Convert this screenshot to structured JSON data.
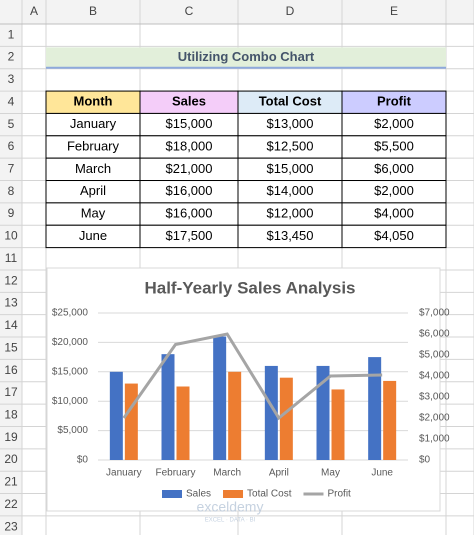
{
  "sheet": {
    "columns": [
      "A",
      "B",
      "C",
      "D",
      "E"
    ],
    "rows": [
      "1",
      "2",
      "3",
      "4",
      "5",
      "6",
      "7",
      "8",
      "9",
      "10",
      "11",
      "12",
      "13",
      "14",
      "15",
      "16",
      "17",
      "18",
      "19",
      "20",
      "21",
      "22",
      "23"
    ],
    "title": "Utilizing Combo Chart",
    "table": {
      "header": [
        "Month",
        "Sales",
        "Total Cost",
        "Profit"
      ],
      "header_colors": [
        "#ffe699",
        "#f4cdf9",
        "#ddebf7",
        "#ccccff"
      ],
      "rows": [
        [
          "January",
          "$15,000",
          "$13,000",
          "$2,000"
        ],
        [
          "February",
          "$18,000",
          "$12,500",
          "$5,500"
        ],
        [
          "March",
          "$21,000",
          "$15,000",
          "$6,000"
        ],
        [
          "April",
          "$16,000",
          "$14,000",
          "$2,000"
        ],
        [
          "May",
          "$16,000",
          "$12,000",
          "$4,000"
        ],
        [
          "June",
          "$17,500",
          "$13,450",
          "$4,050"
        ]
      ]
    },
    "watermark": {
      "name": "exceldemy",
      "tagline": "EXCEL · DATA · BI"
    }
  },
  "chart_data": {
    "type": "combo",
    "title": "Half-Yearly Sales Analysis",
    "categories": [
      "January",
      "February",
      "March",
      "April",
      "May",
      "June"
    ],
    "series": [
      {
        "name": "Sales",
        "type": "bar",
        "color": "#4472c4",
        "values": [
          15000,
          18000,
          21000,
          16000,
          16000,
          17500
        ]
      },
      {
        "name": "Total Cost",
        "type": "bar",
        "color": "#ed7d31",
        "values": [
          13000,
          12500,
          15000,
          14000,
          12000,
          13450
        ]
      },
      {
        "name": "Profit",
        "type": "line",
        "axis": "y2",
        "color": "#a5a5a5",
        "values": [
          2000,
          5500,
          6000,
          2000,
          4000,
          4050
        ]
      }
    ],
    "ylim": [
      0,
      25000
    ],
    "yticks": [
      {
        "value": 0,
        "label": "$0"
      },
      {
        "value": 5000,
        "label": "$5,000"
      },
      {
        "value": 10000,
        "label": "$10,000"
      },
      {
        "value": 15000,
        "label": "$15,000"
      },
      {
        "value": 20000,
        "label": "$20,000"
      },
      {
        "value": 25000,
        "label": "$25,000"
      }
    ],
    "y2lim": [
      0,
      7000
    ],
    "y2ticks": [
      {
        "value": 0,
        "label": "$0"
      },
      {
        "value": 1000,
        "label": "$1,000"
      },
      {
        "value": 2000,
        "label": "$2,000"
      },
      {
        "value": 3000,
        "label": "$3,000"
      },
      {
        "value": 4000,
        "label": "$4,000"
      },
      {
        "value": 5000,
        "label": "$5,000"
      },
      {
        "value": 6000,
        "label": "$6,000"
      },
      {
        "value": 7000,
        "label": "$7,000"
      }
    ],
    "grid": true,
    "legend": "bottom"
  }
}
